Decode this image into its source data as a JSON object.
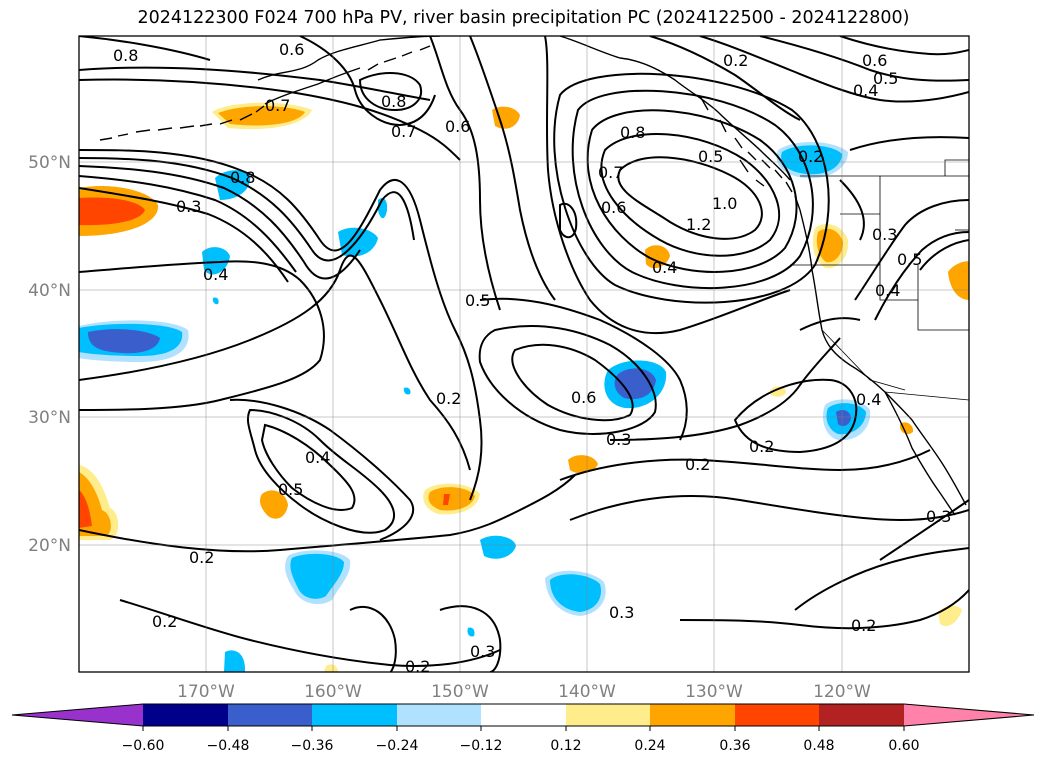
{
  "title": "2024122300 F024 700 hPa PV, river basin precipitation PC (2024122500 - 2024122800)",
  "axes": {
    "lon_labels": [
      "170°W",
      "160°W",
      "150°W",
      "140°W",
      "130°W",
      "120°W"
    ],
    "lat_labels": [
      "50°N",
      "40°N",
      "30°N",
      "20°N"
    ]
  },
  "colorbar": {
    "ticks": [
      "−0.60",
      "−0.48",
      "−0.36",
      "−0.24",
      "−0.12",
      "0.12",
      "0.24",
      "0.36",
      "0.48",
      "0.60"
    ],
    "colors": [
      "#9932cc",
      "#00008b",
      "#3a5fcd",
      "#00bfff",
      "#b0e2ff",
      "#ffffff",
      "#ffec8b",
      "#ffa500",
      "#ff4500",
      "#b22222",
      "#ff82ab"
    ]
  },
  "contour_labels": [
    "0.8",
    "0.6",
    "0.7",
    "0.8",
    "0.7",
    "0.6",
    "0.2",
    "0.6",
    "0.5",
    "0.4",
    "0.8",
    "0.7",
    "0.6",
    "0.5",
    "1.0",
    "1.2",
    "0.4",
    "0.2",
    "0.8",
    "0.3",
    "0.4",
    "0.3",
    "0.5",
    "0.4",
    "0.5",
    "0.2",
    "0.6",
    "0.3",
    "0.4",
    "0.5",
    "0.2",
    "0.2",
    "0.2",
    "0.4",
    "0.3",
    "0.2",
    "0.3",
    "0.2",
    "0.3",
    "0.2"
  ]
}
